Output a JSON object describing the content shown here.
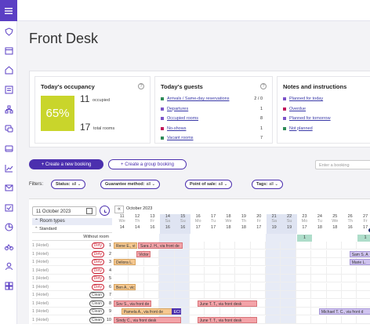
{
  "rail": {
    "icons": [
      "menu-icon",
      "shield-icon",
      "calendar-icon",
      "home-icon",
      "inbox-icon",
      "hierarchy-icon",
      "chat-icon",
      "card-icon",
      "chart-icon",
      "mail-icon",
      "calendar-check-icon",
      "pie-icon",
      "bike-icon",
      "people-icon",
      "grid-icon"
    ]
  },
  "page": {
    "title": "Front Desk"
  },
  "occupancy": {
    "title": "Today's occupancy",
    "percent": "65%",
    "occupied_count": "11",
    "occupied_label": "occupied",
    "total_count": "17",
    "total_label": "total rooms",
    "color": "#c9d52b"
  },
  "guests": {
    "title": "Today's guests",
    "rows": [
      {
        "label": "Arrivals / Same-day reservations",
        "count": "2 / 0",
        "color": "#2e8b57"
      },
      {
        "label": "Departures",
        "count": "1",
        "color": "#7c54c8"
      },
      {
        "label": "Occupied rooms",
        "count": "8",
        "color": "#7c54c8"
      },
      {
        "label": "No-shows",
        "count": "1",
        "color": "#c2185b"
      },
      {
        "label": "Vacant rooms",
        "count": "7",
        "color": "#2e8b57"
      }
    ]
  },
  "notes": {
    "title": "Notes and instructions",
    "rows": [
      {
        "label": "Planned for today",
        "color": "#7c54c8"
      },
      {
        "label": "Overdue",
        "color": "#c2185b"
      },
      {
        "label": "Planned for tomorrow",
        "color": "#7c54c8"
      },
      {
        "label": "Not planned",
        "color": "#2e8b57"
      }
    ]
  },
  "actions": {
    "new_booking": "+ Create a new booking",
    "group_booking": "+ Create a group booking",
    "search_placeholder": "Enter a booking"
  },
  "filters": {
    "label": "Filters:",
    "chips": [
      {
        "key": "Status:",
        "value": "all"
      },
      {
        "key": "Guarantee method:",
        "value": "all"
      },
      {
        "key": "Point of sale:",
        "value": "all"
      },
      {
        "key": "Tags:",
        "value": "all"
      }
    ]
  },
  "calendar": {
    "date_value": "11 October 2023",
    "month": "October 2023",
    "room_types_label": "Room types",
    "standard_label": "Standard",
    "without_room": "Without room",
    "days": [
      {
        "d": "11",
        "w": "We",
        "c": "14"
      },
      {
        "d": "12",
        "w": "Th",
        "c": "14"
      },
      {
        "d": "13",
        "w": "Fr",
        "c": "16"
      },
      {
        "d": "14",
        "w": "Sa",
        "c": "16"
      },
      {
        "d": "15",
        "w": "Su",
        "c": "16"
      },
      {
        "d": "16",
        "w": "Mo",
        "c": "17"
      },
      {
        "d": "17",
        "w": "Tu",
        "c": "17"
      },
      {
        "d": "18",
        "w": "We",
        "c": "18"
      },
      {
        "d": "19",
        "w": "Th",
        "c": "18"
      },
      {
        "d": "20",
        "w": "Fr",
        "c": "17"
      },
      {
        "d": "21",
        "w": "Sa",
        "c": "19"
      },
      {
        "d": "22",
        "w": "Su",
        "c": "19"
      },
      {
        "d": "23",
        "w": "Mo",
        "c": "17"
      },
      {
        "d": "24",
        "w": "Tu",
        "c": "18"
      },
      {
        "d": "25",
        "w": "We",
        "c": "18"
      },
      {
        "d": "26",
        "w": "Th",
        "c": "16"
      },
      {
        "d": "27",
        "w": "Fr",
        "c": "17"
      }
    ],
    "unassigned": [
      {
        "label": "1"
      },
      {
        "label": "1"
      }
    ],
    "rooms": [
      {
        "name": "1 (Hotel)",
        "status": "Dirty",
        "num": "1"
      },
      {
        "name": "1 (Hotel)",
        "status": "Dirty",
        "num": "2"
      },
      {
        "name": "1 (Hotel)",
        "status": "Dirty",
        "num": "3"
      },
      {
        "name": "1 (Hotel)",
        "status": "Dirty",
        "num": "4"
      },
      {
        "name": "1 (Hotel)",
        "status": "Dirty",
        "num": "5"
      },
      {
        "name": "1 (Hotel)",
        "status": "Dirty",
        "num": "6"
      },
      {
        "name": "1 (Hotel)",
        "status": "Clean",
        "num": "7"
      },
      {
        "name": "1 (Hotel)",
        "status": "Clean",
        "num": "8"
      },
      {
        "name": "1 (Hotel)",
        "status": "Clean",
        "num": "9"
      },
      {
        "name": "1 (Hotel)",
        "status": "Clean",
        "num": "10"
      }
    ],
    "bookings": [
      {
        "text": "Rene E., vi",
        "row": 0,
        "start": 0,
        "span": 1.6,
        "kind": "org"
      },
      {
        "text": "Sara J. H., via front de",
        "row": 0,
        "start": 1.6,
        "span": 3,
        "kind": "red"
      },
      {
        "text": "Victor",
        "row": 1,
        "start": 1.5,
        "span": 1,
        "kind": "red"
      },
      {
        "text": "Sam S. A",
        "row": 1,
        "start": 15.5,
        "span": 1.5,
        "kind": "pur"
      },
      {
        "text": "Deliora L.",
        "row": 2,
        "start": 0,
        "span": 1.5,
        "kind": "org"
      },
      {
        "text": "Marie L.",
        "row": 2,
        "start": 15.5,
        "span": 1.5,
        "kind": "pur"
      },
      {
        "text": "Ben A., vic",
        "row": 5,
        "start": 0,
        "span": 1.5,
        "kind": "org"
      },
      {
        "text": "Sov S., via front de",
        "row": 7,
        "start": 0,
        "span": 2.5,
        "kind": "red"
      },
      {
        "text": "June T. T., via front desk",
        "row": 7,
        "start": 5.5,
        "span": 4,
        "kind": "red"
      },
      {
        "text": "Pamela A., via front de",
        "row": 8,
        "start": 0.5,
        "span": 3.5,
        "kind": "org"
      },
      {
        "text": "ECO",
        "row": 8,
        "start": 3.8,
        "span": 0.7,
        "kind": "dk"
      },
      {
        "text": "Michael T. C., via front d",
        "row": 8,
        "start": 13.5,
        "span": 3.5,
        "kind": "pur"
      },
      {
        "text": "Sindy C., via front desk",
        "row": 9,
        "start": 0,
        "span": 4.5,
        "kind": "red"
      },
      {
        "text": "June T. T., via front desk",
        "row": 9,
        "start": 5.5,
        "span": 4,
        "kind": "red"
      }
    ]
  }
}
